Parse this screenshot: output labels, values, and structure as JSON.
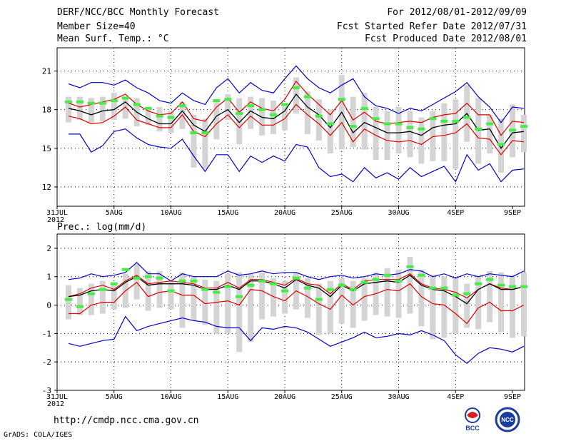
{
  "header": {
    "title": "DERF/NCC/BCC Monthly Forecast",
    "member_size": "Member Size=40",
    "var_label": "Mean Surf. Temp.: °C",
    "period": "For 2012/08/01-2012/09/09",
    "started": "Fcst Started Refer Date 2012/07/31",
    "produced": "Fcst Produced Date 2012/08/01"
  },
  "precip_label": "Prec.: log(mm/d)",
  "footer": {
    "url": "http://cmdp.ncc.cma.gov.cn",
    "grads": "GrADS: COLA/IGES",
    "logo_bcc": "BCC",
    "logo_ncc": "NCC"
  },
  "x_ticks": [
    {
      "day": 0,
      "label": "31JUL",
      "sub": "2012"
    },
    {
      "day": 5,
      "label": "5AUG",
      "sub": ""
    },
    {
      "day": 10,
      "label": "10AUG",
      "sub": ""
    },
    {
      "day": 15,
      "label": "15AUG",
      "sub": ""
    },
    {
      "day": 20,
      "label": "20AUG",
      "sub": ""
    },
    {
      "day": 25,
      "label": "25AUG",
      "sub": ""
    },
    {
      "day": 30,
      "label": "30AUG",
      "sub": ""
    },
    {
      "day": 35,
      "label": "4SEP",
      "sub": ""
    },
    {
      "day": 40,
      "label": "9SEP",
      "sub": ""
    }
  ],
  "colors": {
    "envelope": "#0000cc",
    "band": "#dd0000",
    "mean": "#000000",
    "member": "#44ee44",
    "spread": "#d4d4d4"
  },
  "chart_data": [
    {
      "type": "line",
      "title": "Mean Surf. Temp.: °C",
      "x_start": 1,
      "x_end": 40,
      "xlim": [
        0,
        40
      ],
      "ylim": [
        10.5,
        22.8
      ],
      "yticks": [
        12,
        15,
        18,
        21
      ],
      "series": [
        {
          "name": "max",
          "values": [
            20.0,
            19.7,
            20.1,
            20.1,
            19.9,
            20.3,
            19.7,
            19.3,
            18.7,
            18.5,
            19.3,
            18.7,
            18.4,
            19.7,
            20.4,
            19.3,
            20.1,
            19.5,
            19.3,
            20.4,
            21.4,
            20.4,
            19.7,
            19.3,
            19.9,
            20.4,
            19.0,
            18.3,
            18.1,
            17.7,
            18.1,
            17.9,
            18.4,
            18.9,
            19.4,
            20.1,
            19.0,
            18.2,
            17.0,
            18.2,
            18.1
          ]
        },
        {
          "name": "upper",
          "values": [
            18.5,
            18.2,
            18.4,
            18.6,
            18.8,
            19.2,
            18.4,
            17.9,
            17.6,
            17.7,
            18.6,
            17.3,
            17.1,
            18.2,
            18.9,
            17.8,
            18.6,
            18.1,
            17.9,
            18.8,
            20.2,
            19.2,
            18.4,
            17.6,
            18.7,
            17.2,
            17.8,
            17.1,
            16.9,
            17.0,
            17.1,
            17.0,
            17.4,
            17.6,
            17.7,
            18.5,
            17.6,
            17.6,
            16.0,
            17.1,
            17.0
          ]
        },
        {
          "name": "mean",
          "values": [
            18.1,
            17.9,
            17.6,
            17.9,
            18.0,
            18.6,
            17.8,
            17.3,
            16.9,
            16.9,
            17.9,
            16.8,
            16.3,
            17.5,
            18.0,
            17.0,
            17.9,
            17.4,
            17.3,
            17.9,
            19.2,
            18.2,
            17.6,
            16.6,
            17.8,
            16.2,
            17.0,
            16.6,
            16.2,
            16.2,
            16.3,
            16.0,
            16.6,
            16.8,
            16.9,
            17.7,
            16.4,
            16.5,
            15.0,
            16.2,
            16.3
          ]
        },
        {
          "name": "lower",
          "values": [
            17.5,
            17.3,
            16.9,
            17.0,
            17.5,
            18.2,
            17.2,
            16.9,
            16.6,
            16.6,
            17.6,
            16.3,
            15.9,
            16.9,
            17.6,
            16.6,
            17.5,
            16.8,
            16.8,
            17.3,
            18.4,
            17.6,
            16.9,
            16.0,
            17.0,
            15.5,
            16.5,
            16.0,
            15.6,
            15.5,
            15.6,
            15.3,
            15.9,
            16.0,
            16.2,
            16.9,
            15.8,
            15.7,
            14.5,
            15.6,
            15.5
          ]
        },
        {
          "name": "min",
          "values": [
            16.1,
            16.1,
            14.7,
            15.2,
            16.3,
            16.5,
            15.8,
            15.3,
            15.1,
            15.0,
            15.7,
            14.4,
            13.2,
            14.5,
            14.5,
            13.2,
            14.4,
            13.9,
            14.4,
            14.0,
            15.3,
            15.1,
            13.5,
            12.8,
            13.0,
            12.4,
            13.5,
            12.7,
            13.1,
            12.6,
            13.5,
            12.8,
            13.2,
            13.6,
            12.4,
            14.5,
            13.3,
            13.8,
            12.4,
            13.3,
            13.4
          ]
        },
        {
          "name": "ensemble",
          "values": [
            18.6,
            18.6,
            18.5,
            18.5,
            18.7,
            18.9,
            18.4,
            18.1,
            17.5,
            17.4,
            18.3,
            16.2,
            16.2,
            18.7,
            18.8,
            17.7,
            18.3,
            18.0,
            17.6,
            18.4,
            19.7,
            19.0,
            17.5,
            16.9,
            18.8,
            16.7,
            18.1,
            17.3,
            16.9,
            16.9,
            16.6,
            16.5,
            17.3,
            17.1,
            17.1,
            17.4,
            16.5,
            16.9,
            15.3,
            16.4,
            16.7
          ]
        }
      ],
      "spread": [
        [
          17.0,
          19.0
        ],
        [
          17.2,
          19.0
        ],
        [
          17.0,
          18.9
        ],
        [
          17.1,
          19.0
        ],
        [
          17.2,
          19.3
        ],
        [
          17.3,
          18.9
        ],
        [
          16.7,
          18.9
        ],
        [
          16.8,
          18.2
        ],
        [
          16.3,
          18.2
        ],
        [
          16.2,
          17.9
        ],
        [
          16.5,
          18.6
        ],
        [
          13.5,
          17.6
        ],
        [
          13.4,
          17.3
        ],
        [
          15.7,
          18.7
        ],
        [
          17.2,
          19.2
        ],
        [
          15.3,
          18.9
        ],
        [
          16.5,
          19.0
        ],
        [
          16.0,
          18.9
        ],
        [
          16.1,
          18.7
        ],
        [
          16.4,
          18.3
        ],
        [
          17.7,
          20.5
        ],
        [
          16.1,
          19.4
        ],
        [
          15.6,
          18.8
        ],
        [
          14.6,
          18.0
        ],
        [
          14.9,
          20.7
        ],
        [
          15.1,
          19.0
        ],
        [
          14.9,
          19.3
        ],
        [
          14.1,
          18.2
        ],
        [
          14.1,
          17.9
        ],
        [
          14.6,
          18.2
        ],
        [
          14.3,
          17.9
        ],
        [
          13.8,
          17.4
        ],
        [
          14.0,
          17.9
        ],
        [
          14.0,
          18.5
        ],
        [
          13.4,
          18.8
        ],
        [
          15.5,
          19.9
        ],
        [
          13.8,
          18.9
        ],
        [
          14.6,
          17.6
        ],
        [
          13.1,
          17.3
        ],
        [
          14.3,
          18.4
        ],
        [
          14.7,
          17.6
        ]
      ]
    },
    {
      "type": "line",
      "title": "Prec.: log(mm/d)",
      "x_start": 1,
      "x_end": 40,
      "xlim": [
        0,
        40
      ],
      "ylim": [
        -3,
        2.5
      ],
      "yticks": [
        -3,
        -2,
        -1,
        0,
        1,
        2
      ],
      "series": [
        {
          "name": "max",
          "values": [
            0.9,
            0.95,
            1.1,
            1.0,
            1.05,
            1.15,
            1.5,
            1.1,
            1.1,
            0.85,
            1.1,
            1.0,
            1.0,
            1.0,
            1.2,
            1.05,
            1.1,
            1.2,
            1.1,
            1.15,
            1.15,
            1.0,
            0.9,
            1.0,
            1.05,
            0.95,
            1.0,
            1.1,
            1.05,
            1.1,
            1.25,
            1.2,
            1.0,
            1.1,
            0.95,
            1.1,
            1.0,
            1.1,
            1.05,
            1.0,
            1.2
          ]
        },
        {
          "name": "upper",
          "values": [
            0.3,
            0.4,
            0.6,
            0.7,
            0.55,
            0.85,
            1.05,
            0.75,
            0.8,
            0.85,
            0.8,
            0.75,
            0.6,
            0.6,
            0.8,
            0.6,
            0.9,
            0.9,
            0.8,
            0.7,
            0.95,
            0.75,
            0.7,
            0.4,
            0.75,
            0.55,
            0.85,
            0.9,
            0.9,
            0.9,
            1.1,
            0.75,
            0.6,
            0.55,
            0.45,
            0.25,
            0.55,
            0.75,
            0.6,
            0.55,
            0.65
          ]
        },
        {
          "name": "mean",
          "values": [
            0.3,
            0.35,
            0.5,
            0.55,
            0.5,
            0.8,
            1.0,
            0.7,
            0.75,
            0.75,
            0.75,
            0.7,
            0.55,
            0.55,
            0.7,
            0.55,
            0.85,
            0.85,
            0.75,
            0.6,
            0.9,
            0.7,
            0.6,
            0.3,
            0.7,
            0.5,
            0.75,
            0.8,
            0.85,
            0.8,
            1.05,
            0.7,
            0.55,
            0.5,
            0.3,
            0.05,
            0.55,
            0.75,
            0.55,
            0.55,
            0.65
          ]
        },
        {
          "name": "lower",
          "values": [
            -0.3,
            -0.3,
            0.0,
            0.1,
            0.1,
            0.5,
            0.8,
            0.3,
            0.45,
            0.5,
            0.35,
            0.35,
            0.05,
            0.1,
            0.15,
            0.0,
            0.55,
            0.5,
            0.3,
            0.15,
            0.5,
            0.3,
            0.05,
            -0.15,
            0.35,
            0.0,
            0.3,
            0.4,
            0.55,
            0.5,
            0.75,
            0.3,
            0.05,
            0.0,
            -0.3,
            -0.65,
            -0.1,
            0.1,
            -0.2,
            -0.2,
            0.0
          ]
        },
        {
          "name": "min",
          "values": [
            -1.35,
            -1.45,
            -1.35,
            -1.25,
            -1.2,
            -0.4,
            -0.9,
            -0.75,
            -0.65,
            -0.55,
            -0.45,
            -0.55,
            -0.6,
            -0.75,
            -0.8,
            -0.8,
            -1.25,
            -0.8,
            -0.85,
            -0.75,
            -0.8,
            -0.95,
            -1.2,
            -1.45,
            -1.3,
            -1.15,
            -0.95,
            -1.15,
            -1.1,
            -1.0,
            -1.05,
            -0.9,
            -1.05,
            -1.25,
            -1.75,
            -2.05,
            -1.7,
            -1.5,
            -1.55,
            -1.65,
            -1.45
          ]
        },
        {
          "name": "ensemble",
          "values": [
            0.2,
            -0.05,
            0.4,
            0.55,
            0.75,
            1.25,
            0.95,
            1.0,
            0.95,
            0.5,
            0.85,
            0.85,
            0.55,
            0.45,
            0.65,
            0.3,
            0.7,
            0.85,
            0.75,
            0.5,
            0.95,
            0.6,
            0.2,
            0.55,
            0.7,
            0.55,
            0.8,
            0.9,
            1.05,
            0.85,
            1.35,
            1.05,
            0.6,
            0.6,
            0.35,
            0.4,
            0.75,
            0.9,
            0.7,
            0.65,
            0.65
          ]
        }
      ],
      "spread": [
        [
          -0.5,
          0.7
        ],
        [
          -0.35,
          0.6
        ],
        [
          -0.35,
          0.75
        ],
        [
          -0.3,
          0.85
        ],
        [
          -0.15,
          0.8
        ],
        [
          -0.1,
          1.1
        ],
        [
          0.2,
          1.45
        ],
        [
          -0.2,
          1.2
        ],
        [
          -0.1,
          1.2
        ],
        [
          -0.15,
          0.85
        ],
        [
          -0.8,
          1.15
        ],
        [
          -0.55,
          1.0
        ],
        [
          -0.7,
          0.9
        ],
        [
          -1.0,
          0.85
        ],
        [
          -1.0,
          1.1
        ],
        [
          -1.65,
          1.15
        ],
        [
          -1.3,
          1.1
        ],
        [
          -0.5,
          1.15
        ],
        [
          -0.4,
          0.95
        ],
        [
          -0.3,
          0.85
        ],
        [
          -0.15,
          1.15
        ],
        [
          -0.45,
          0.95
        ],
        [
          -1.05,
          0.75
        ],
        [
          -1.0,
          0.85
        ],
        [
          -0.65,
          0.95
        ],
        [
          -0.8,
          0.85
        ],
        [
          -0.55,
          0.95
        ],
        [
          -0.35,
          1.15
        ],
        [
          -0.4,
          1.3
        ],
        [
          -0.45,
          1.25
        ],
        [
          -0.3,
          1.7
        ],
        [
          -0.75,
          1.25
        ],
        [
          -1.2,
          1.05
        ],
        [
          -1.15,
          1.0
        ],
        [
          -1.0,
          0.95
        ],
        [
          -0.8,
          0.75
        ],
        [
          -0.85,
          1.0
        ],
        [
          -0.6,
          1.2
        ],
        [
          -0.95,
          1.15
        ],
        [
          -1.15,
          1.05
        ],
        [
          -1.1,
          1.15
        ]
      ]
    }
  ]
}
